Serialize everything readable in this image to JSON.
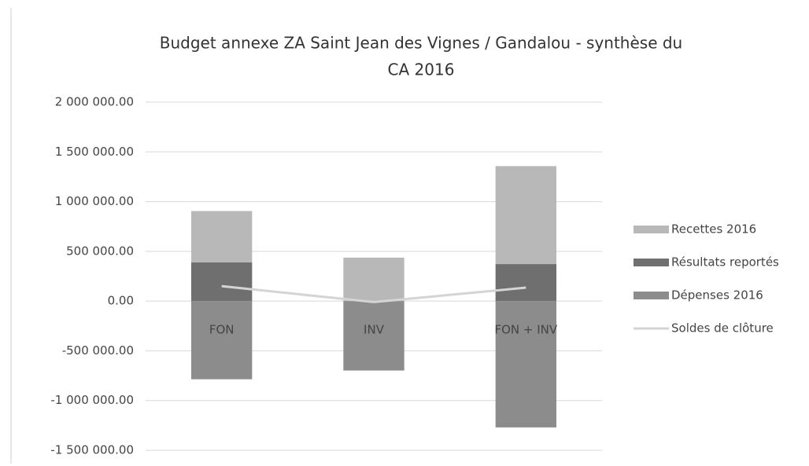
{
  "chart_data": {
    "type": "stacked_bar_line",
    "title": "Budget annexe ZA Saint Jean des Vignes / Gandalou - synthèse du CA 2016",
    "categories": [
      "FON",
      "INV",
      "FON + INV"
    ],
    "series": [
      {
        "name": "Recettes 2016",
        "color": "#b8b8b8",
        "kind": "bar",
        "values": [
          515000,
          437000,
          985000
        ]
      },
      {
        "name": "Résultats reportés",
        "color": "#6f6f6f",
        "kind": "bar",
        "values": [
          390000,
          0,
          372000
        ]
      },
      {
        "name": "Dépenses 2016",
        "color": "#8c8c8c",
        "kind": "bar",
        "values": [
          -786000,
          -698000,
          -1270000
        ]
      },
      {
        "name": "Soldes de clôture",
        "color": "#d4d4d4",
        "kind": "line",
        "values": [
          150000,
          -10000,
          135000
        ]
      }
    ],
    "ylim": [
      -1500000,
      2000000
    ],
    "yticks": [
      {
        "value": -1500000,
        "label": "-1 500 000.00"
      },
      {
        "value": -1000000,
        "label": "-1 000 000.00"
      },
      {
        "value": -500000,
        "label": "-500 000.00"
      },
      {
        "value": 0,
        "label": "0.00"
      },
      {
        "value": 500000,
        "label": "500 000.00"
      },
      {
        "value": 1000000,
        "label": "1 000 000.00"
      },
      {
        "value": 1500000,
        "label": "1 500 000.00"
      },
      {
        "value": 2000000,
        "label": "2 000 000.00"
      }
    ],
    "grid": true,
    "legend": "right"
  }
}
